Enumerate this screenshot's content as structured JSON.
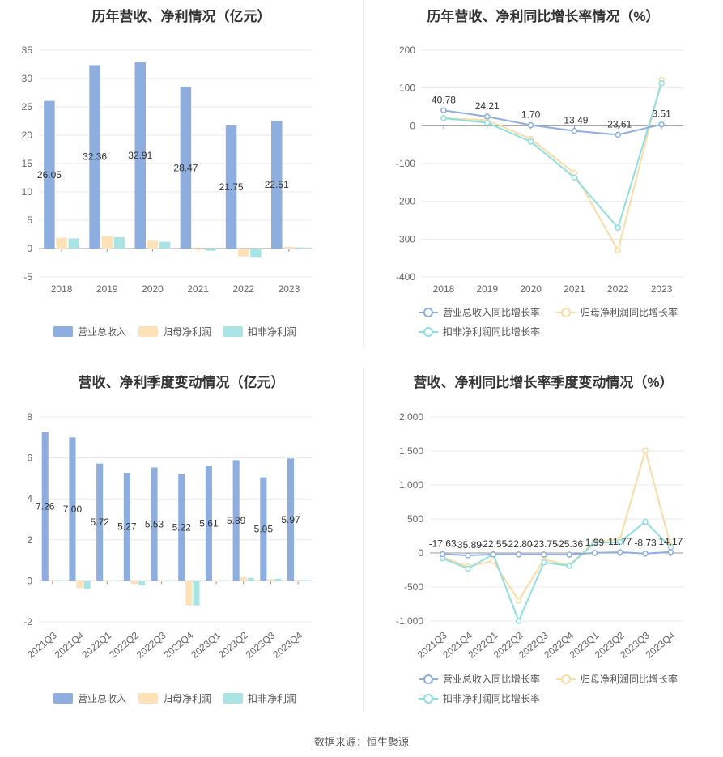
{
  "footer": "数据来源：恒生聚源",
  "colors": {
    "revenue": "#8eaedf",
    "net_profit": "#fde2b8",
    "deducted_profit": "#a9e4e4",
    "rev_growth_line": "#8eaedf",
    "np_growth_line": "#fcdca4",
    "dp_growth_line": "#8ee0e0"
  },
  "chart_data": [
    {
      "id": "annual-bar",
      "type": "bar",
      "title": "历年营收、净利情况（亿元）",
      "categories": [
        "2018",
        "2019",
        "2020",
        "2021",
        "2022",
        "2023"
      ],
      "ylim": [
        -5,
        35
      ],
      "yticks": [
        35,
        30,
        25,
        20,
        15,
        10,
        5,
        0,
        -5
      ],
      "series": [
        {
          "name": "营业总收入",
          "values": [
            26.05,
            32.36,
            32.91,
            28.47,
            21.75,
            22.51
          ],
          "labels": [
            "26.05",
            "32.36",
            "32.91",
            "28.47",
            "21.75",
            "22.51"
          ]
        },
        {
          "name": "归母净利润",
          "values": [
            1.9,
            2.2,
            1.4,
            -0.2,
            -1.4,
            0.3
          ]
        },
        {
          "name": "扣非净利润",
          "values": [
            1.8,
            2.0,
            1.2,
            -0.4,
            -1.6,
            0.2
          ]
        }
      ],
      "legend": "bottom"
    },
    {
      "id": "annual-line",
      "type": "line",
      "title": "历年营收、净利同比增长率情况（%）",
      "categories": [
        "2018",
        "2019",
        "2020",
        "2021",
        "2022",
        "2023"
      ],
      "ylim": [
        -400,
        200
      ],
      "yticks": [
        200,
        100,
        0,
        -100,
        -200,
        -300,
        -400
      ],
      "series": [
        {
          "name": "营业总收入同比增长率",
          "values": [
            40.78,
            24.21,
            1.7,
            -13.49,
            -23.61,
            3.51
          ],
          "labels": [
            "40.78",
            "24.21",
            "1.70",
            "-13.49",
            "-23.61",
            "3.51"
          ]
        },
        {
          "name": "归母净利润同比增长率",
          "values": [
            20,
            15,
            -35,
            -125,
            -330,
            122
          ]
        },
        {
          "name": "扣非净利润同比增长率",
          "values": [
            20,
            8,
            -42,
            -137,
            -270,
            113
          ]
        }
      ],
      "legend": "bottom"
    },
    {
      "id": "quarter-bar",
      "type": "bar",
      "title": "营收、净利季度变动情况（亿元）",
      "categories": [
        "2021Q3",
        "2021Q4",
        "2022Q1",
        "2022Q2",
        "2022Q3",
        "2022Q4",
        "2023Q1",
        "2023Q2",
        "2023Q3",
        "2023Q4"
      ],
      "ylim": [
        -2,
        8
      ],
      "yticks": [
        8,
        6,
        4,
        2,
        0,
        -2
      ],
      "series": [
        {
          "name": "营业总收入",
          "values": [
            7.26,
            7.0,
            5.72,
            5.27,
            5.53,
            5.22,
            5.61,
            5.89,
            5.05,
            5.97
          ],
          "labels": [
            "7.26",
            "7.00",
            "5.72",
            "5.27",
            "5.53",
            "5.22",
            "5.61",
            "5.89",
            "5.05",
            "5.97"
          ]
        },
        {
          "name": "归母净利润",
          "values": [
            0.05,
            -0.35,
            0.03,
            -0.15,
            0.02,
            -1.2,
            0.04,
            0.18,
            0.08,
            0.05
          ]
        },
        {
          "name": "扣非净利润",
          "values": [
            0.04,
            -0.4,
            0.02,
            -0.22,
            0.01,
            -1.2,
            0.03,
            0.15,
            0.1,
            0.04
          ]
        }
      ],
      "legend": "bottom"
    },
    {
      "id": "quarter-line",
      "type": "line",
      "title": "营收、净利同比增长率季度变动情况（%）",
      "categories": [
        "2021Q3",
        "2021Q4",
        "2022Q1",
        "2022Q2",
        "2022Q3",
        "2022Q4",
        "2023Q1",
        "2023Q2",
        "2023Q3",
        "2023Q4"
      ],
      "ylim": [
        -1000,
        2000
      ],
      "yticks": [
        "2,000",
        "1,500",
        "1,000",
        "500",
        "0",
        "-500",
        "-1,000"
      ],
      "ytick_values": [
        2000,
        1500,
        1000,
        500,
        0,
        -500,
        -1000
      ],
      "series": [
        {
          "name": "营业总收入同比增长率",
          "values": [
            -17.63,
            -35.89,
            -22.55,
            -22.8,
            -23.75,
            -25.36,
            1.99,
            11.77,
            -8.73,
            14.17
          ],
          "labels": [
            "-17.63",
            "-35.89",
            "-22.55",
            "-22.80",
            "-23.75",
            "-25.36",
            "1.99",
            "11.77",
            "-8.73",
            "14.17"
          ]
        },
        {
          "name": "归母净利润同比增长率",
          "values": [
            -60,
            -200,
            -120,
            -700,
            -100,
            -180,
            170,
            200,
            1510,
            100
          ]
        },
        {
          "name": "扣非净利润同比增长率",
          "values": [
            -80,
            -230,
            -20,
            -1000,
            -140,
            -190,
            150,
            160,
            460,
            80
          ]
        }
      ],
      "legend": "bottom"
    }
  ]
}
